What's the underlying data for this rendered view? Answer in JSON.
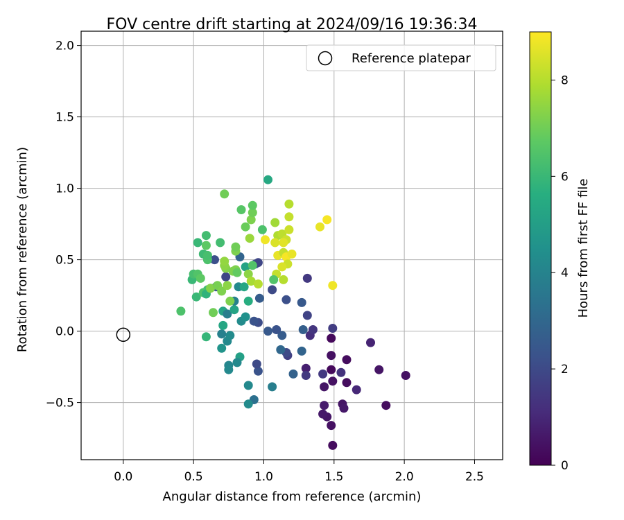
{
  "chart_data": {
    "type": "scatter",
    "title": "FOV centre drift starting at 2024/09/16 19:36:34",
    "xlabel": "Angular distance from reference (arcmin)",
    "ylabel": "Rotation from reference (arcmin)",
    "xlim": [
      -0.3,
      2.7
    ],
    "ylim": [
      -0.9,
      2.1
    ],
    "xticks": [
      "0.0",
      "0.5",
      "1.0",
      "1.5",
      "2.0",
      "2.5"
    ],
    "yticks": [
      "−0.5",
      "0.0",
      "0.5",
      "1.0",
      "1.5",
      "2.0"
    ],
    "grid": true,
    "legend": {
      "placement": "top-right",
      "entries": [
        "Reference platepar"
      ]
    },
    "reference_point": {
      "x": 0.0,
      "y": 0.0,
      "marker": "open-circle"
    },
    "colorbar": {
      "label": "Hours from first FF file",
      "colormap": "viridis",
      "range": [
        0,
        9
      ],
      "ticks": [
        "0",
        "2",
        "4",
        "6",
        "8"
      ]
    },
    "points_xyc": [
      [
        1.49,
        -0.8,
        0.3
      ],
      [
        1.48,
        -0.66,
        0.4
      ],
      [
        1.45,
        -0.6,
        0.5
      ],
      [
        1.42,
        -0.58,
        0.6
      ],
      [
        1.43,
        -0.52,
        0.7
      ],
      [
        1.56,
        -0.51,
        0.5
      ],
      [
        1.57,
        -0.54,
        0.6
      ],
      [
        1.87,
        -0.52,
        0.3
      ],
      [
        2.01,
        -0.31,
        0.4
      ],
      [
        1.82,
        -0.27,
        0.5
      ],
      [
        1.76,
        -0.08,
        0.9
      ],
      [
        1.66,
        -0.41,
        1.0
      ],
      [
        1.59,
        -0.36,
        0.3
      ],
      [
        1.49,
        -0.35,
        0.4
      ],
      [
        1.43,
        -0.39,
        0.5
      ],
      [
        1.55,
        -0.29,
        1.3
      ],
      [
        1.48,
        -0.27,
        0.2
      ],
      [
        1.59,
        -0.2,
        0.3
      ],
      [
        1.48,
        -0.17,
        0.4
      ],
      [
        1.48,
        -0.05,
        0.2
      ],
      [
        1.42,
        -0.3,
        1.5
      ],
      [
        1.3,
        -0.26,
        0.8
      ],
      [
        1.3,
        -0.31,
        1.5
      ],
      [
        1.33,
        -0.03,
        1.2
      ],
      [
        1.35,
        0.01,
        1.4
      ],
      [
        1.49,
        0.02,
        1.6
      ],
      [
        1.31,
        0.11,
        1.8
      ],
      [
        1.31,
        0.37,
        1.5
      ],
      [
        1.27,
        0.2,
        2.5
      ],
      [
        1.28,
        0.01,
        2.7
      ],
      [
        1.27,
        -0.14,
        2.9
      ],
      [
        1.21,
        -0.3,
        2.8
      ],
      [
        1.17,
        -0.17,
        1.7
      ],
      [
        1.16,
        -0.15,
        2.0
      ],
      [
        1.12,
        -0.13,
        3.0
      ],
      [
        1.13,
        -0.03,
        2.6
      ],
      [
        1.09,
        0.01,
        2.3
      ],
      [
        1.03,
        0.0,
        2.5
      ],
      [
        1.16,
        0.22,
        2.2
      ],
      [
        1.06,
        0.29,
        2.0
      ],
      [
        0.97,
        0.23,
        2.6
      ],
      [
        0.96,
        0.06,
        2.1
      ],
      [
        0.93,
        0.07,
        2.3
      ],
      [
        0.96,
        -0.28,
        2.3
      ],
      [
        1.06,
        -0.39,
        3.8
      ],
      [
        0.93,
        -0.48,
        3.3
      ],
      [
        0.89,
        -0.51,
        4.3
      ],
      [
        0.89,
        -0.38,
        4.2
      ],
      [
        0.95,
        -0.23,
        2.0
      ],
      [
        0.83,
        -0.18,
        5.1
      ],
      [
        0.81,
        -0.22,
        4.2
      ],
      [
        0.75,
        -0.24,
        4.1
      ],
      [
        0.75,
        -0.27,
        4.2
      ],
      [
        0.74,
        -0.07,
        4.2
      ],
      [
        0.76,
        -0.03,
        4.3
      ],
      [
        0.7,
        -0.02,
        3.9
      ],
      [
        0.7,
        -0.12,
        4.6
      ],
      [
        0.71,
        0.04,
        5.3
      ],
      [
        0.71,
        0.14,
        5.2
      ],
      [
        0.74,
        0.12,
        3.8
      ],
      [
        0.84,
        0.07,
        4.3
      ],
      [
        0.87,
        0.1,
        4.5
      ],
      [
        0.89,
        0.21,
        5.6
      ],
      [
        0.79,
        0.21,
        3.9
      ],
      [
        0.79,
        0.15,
        5.2
      ],
      [
        0.82,
        0.31,
        4.2
      ],
      [
        0.86,
        0.31,
        5.3
      ],
      [
        0.73,
        0.38,
        1.9
      ],
      [
        0.66,
        0.31,
        2.4
      ],
      [
        0.65,
        0.5,
        2.2
      ],
      [
        0.83,
        0.52,
        2.9
      ],
      [
        0.87,
        0.45,
        5.2
      ],
      [
        0.94,
        0.47,
        2.5
      ],
      [
        0.96,
        0.48,
        1.9
      ],
      [
        0.92,
        0.46,
        6.5
      ],
      [
        0.6,
        0.29,
        6.2
      ],
      [
        0.64,
        0.13,
        7.0
      ],
      [
        0.59,
        -0.04,
        5.9
      ],
      [
        0.52,
        0.24,
        6.0
      ],
      [
        0.49,
        0.36,
        6.0
      ],
      [
        0.5,
        0.4,
        6.3
      ],
      [
        0.53,
        0.4,
        6.5
      ],
      [
        0.55,
        0.37,
        6.7
      ],
      [
        0.57,
        0.27,
        6.4
      ],
      [
        0.59,
        0.26,
        5.8
      ],
      [
        0.62,
        0.3,
        7.3
      ],
      [
        0.67,
        0.32,
        7.1
      ],
      [
        0.7,
        0.28,
        7.2
      ],
      [
        0.74,
        0.32,
        7.4
      ],
      [
        0.76,
        0.21,
        7.2
      ],
      [
        0.73,
        0.44,
        7.3
      ],
      [
        0.78,
        0.42,
        7.2
      ],
      [
        0.8,
        0.43,
        7.2
      ],
      [
        0.81,
        0.41,
        6.8
      ],
      [
        0.72,
        0.46,
        7.4
      ],
      [
        0.72,
        0.49,
        7.5
      ],
      [
        0.6,
        0.5,
        6.4
      ],
      [
        0.57,
        0.54,
        6.1
      ],
      [
        0.6,
        0.53,
        6.3
      ],
      [
        0.59,
        0.67,
        6.2
      ],
      [
        0.53,
        0.62,
        6.0
      ],
      [
        0.69,
        0.62,
        6.2
      ],
      [
        0.41,
        0.14,
        6.4
      ],
      [
        0.59,
        0.6,
        6.7
      ],
      [
        0.8,
        0.56,
        7.2
      ],
      [
        0.8,
        0.59,
        7.0
      ],
      [
        0.87,
        0.73,
        6.9
      ],
      [
        0.91,
        0.78,
        7.2
      ],
      [
        0.92,
        0.83,
        7.0
      ],
      [
        0.92,
        0.88,
        6.7
      ],
      [
        0.84,
        0.85,
        6.6
      ],
      [
        0.72,
        0.96,
        7.0
      ],
      [
        1.03,
        1.06,
        5.4
      ],
      [
        0.99,
        0.71,
        6.4
      ],
      [
        0.9,
        0.65,
        7.6
      ],
      [
        0.89,
        0.4,
        7.4
      ],
      [
        0.91,
        0.35,
        7.8
      ],
      [
        0.96,
        0.33,
        8.0
      ],
      [
        1.08,
        0.76,
        7.7
      ],
      [
        1.1,
        0.67,
        7.9
      ],
      [
        1.13,
        0.68,
        8.1
      ],
      [
        1.18,
        0.89,
        8.0
      ],
      [
        1.18,
        0.8,
        8.2
      ],
      [
        1.18,
        0.71,
        8.3
      ],
      [
        1.16,
        0.64,
        8.3
      ],
      [
        1.14,
        0.62,
        8.6
      ],
      [
        1.08,
        0.62,
        8.5
      ],
      [
        1.01,
        0.64,
        8.8
      ],
      [
        1.1,
        0.53,
        8.7
      ],
      [
        1.14,
        0.55,
        8.2
      ],
      [
        1.16,
        0.52,
        8.9
      ],
      [
        1.2,
        0.54,
        8.7
      ],
      [
        1.17,
        0.47,
        8.3
      ],
      [
        1.13,
        0.45,
        8.5
      ],
      [
        1.09,
        0.4,
        8.2
      ],
      [
        1.07,
        0.36,
        6.5
      ],
      [
        1.14,
        0.36,
        8.0
      ],
      [
        1.4,
        0.73,
        8.7
      ],
      [
        1.45,
        0.78,
        8.9
      ],
      [
        1.49,
        0.32,
        8.8
      ]
    ]
  }
}
